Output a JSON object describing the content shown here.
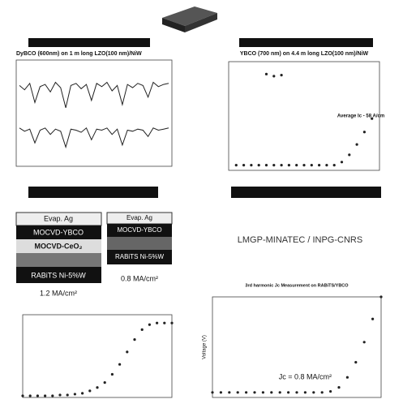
{
  "stack_left": {
    "layers": [
      "Evap. Ag",
      "MOCVD-YBCO",
      "MOCVD-CeO₂",
      "RABiTS Ni-5%W"
    ],
    "jc": "1.2 MA/cm²"
  },
  "stack_right": {
    "layers": [
      "Evap. Ag",
      "MOCVD-YBCO",
      "RABiTS Ni-5%W"
    ],
    "jc": "0.8 MA/cm²"
  },
  "lab": "LMGP-MINATEC / INPG-CNRS",
  "chart_data": [
    {
      "type": "line",
      "title": "DyBCO (600nm) on 1 m long LZO(100 nm)/NiW",
      "series": [
        {
          "color": "#222",
          "values": [
            76,
            72,
            78,
            60,
            75,
            77,
            70,
            79,
            74,
            55,
            76,
            78,
            73,
            77,
            62,
            78,
            75,
            79,
            71,
            76,
            58,
            77,
            74,
            78,
            76,
            65,
            79,
            75,
            77,
            78
          ]
        },
        {
          "color": "#222",
          "values": [
            36,
            33,
            35,
            22,
            34,
            36,
            30,
            35,
            33,
            18,
            35,
            34,
            32,
            36,
            25,
            35,
            34,
            36,
            30,
            35,
            20,
            34,
            33,
            35,
            34,
            28,
            36,
            34,
            35,
            36
          ]
        }
      ],
      "ylim": [
        0,
        100
      ]
    },
    {
      "type": "scatter",
      "title": "YBCO (700 nm) on 4.4 m long LZO(100 nm)/NiW",
      "annotation": "Average Ic - 58 A/cm",
      "series": [
        {
          "color": "#222",
          "x": [
            5,
            10,
            15,
            20,
            25,
            30,
            35,
            40,
            45,
            50,
            55,
            60,
            65,
            70,
            75,
            80,
            85,
            90,
            95
          ],
          "values": [
            0,
            0,
            0,
            0,
            0,
            0,
            0,
            0,
            0,
            0,
            0,
            0,
            0,
            0,
            3,
            10,
            20,
            32,
            45
          ]
        },
        {
          "color": "#222",
          "x": [
            25,
            30,
            35
          ],
          "values": [
            88,
            86,
            87
          ]
        }
      ],
      "xlim": [
        0,
        100
      ],
      "ylim": [
        -5,
        100
      ]
    },
    {
      "type": "scatter",
      "series": [
        {
          "color": "#222",
          "x": [
            0,
            5,
            10,
            15,
            20,
            25,
            30,
            35,
            40,
            45,
            50,
            55,
            60,
            65,
            70,
            75,
            80,
            85,
            90,
            95,
            100
          ],
          "values": [
            2,
            2,
            2,
            2,
            2,
            3,
            3,
            4,
            5,
            8,
            12,
            18,
            28,
            40,
            55,
            70,
            82,
            88,
            90,
            90,
            90
          ]
        }
      ],
      "xlim": [
        0,
        100
      ],
      "ylim": [
        0,
        100
      ]
    },
    {
      "type": "scatter",
      "title": "3rd harmonic Jc Measurement on RABiTS/YBCO",
      "ylabel": "Voltage (V)",
      "annotation": "Jc = 0.8 MA/cm²",
      "series": [
        {
          "color": "#222",
          "x": [
            0,
            5,
            10,
            15,
            20,
            25,
            30,
            35,
            40,
            45,
            50,
            55,
            60,
            65,
            70,
            75,
            80,
            85,
            90,
            95,
            100
          ],
          "values": [
            5,
            5,
            5,
            5,
            5,
            5,
            5,
            5,
            5,
            5,
            5,
            5,
            5,
            5,
            6,
            10,
            20,
            35,
            55,
            78,
            100
          ]
        }
      ],
      "xlim": [
        0,
        100
      ],
      "ylim": [
        0,
        100
      ]
    }
  ]
}
